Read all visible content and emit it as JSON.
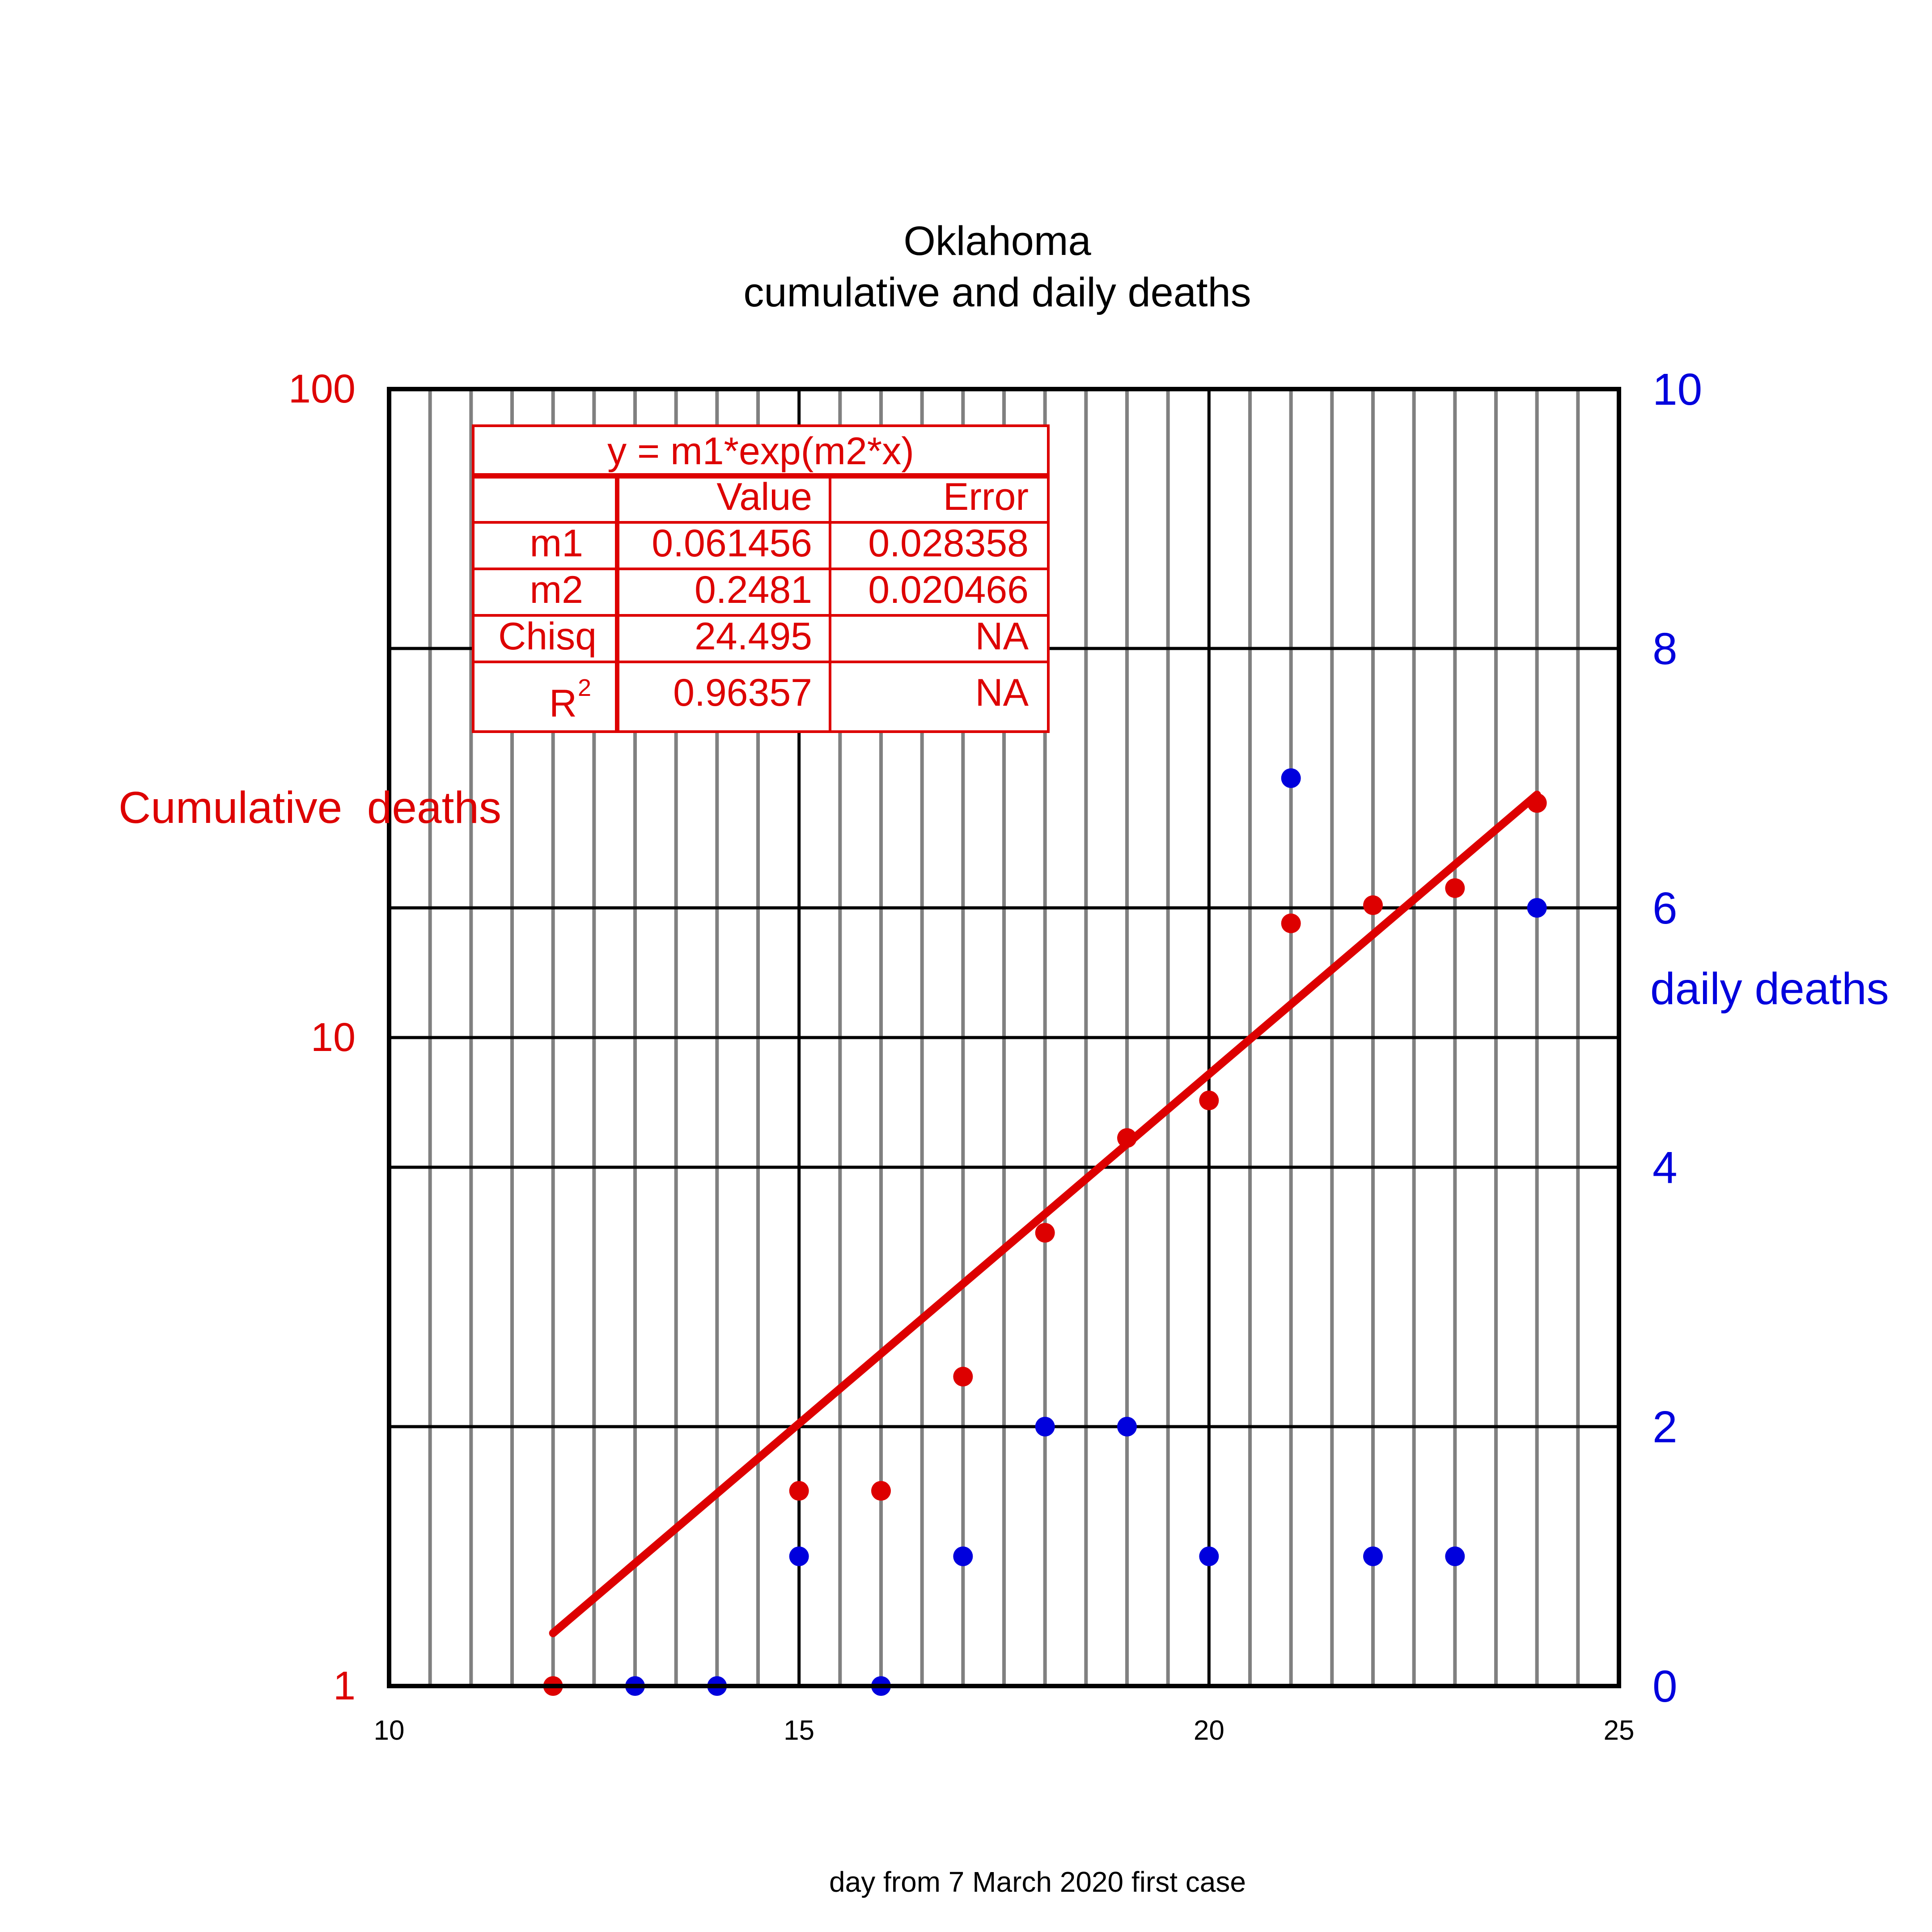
{
  "chart_data": {
    "type": "scatter",
    "title": "Oklahoma",
    "subtitle": "cumulative and daily deaths",
    "xlabel": "day from 7 March 2020 first case",
    "ylabel_left": "Cumulative  deaths",
    "ylabel_right": "daily deaths",
    "xlim": [
      10,
      25
    ],
    "x_ticks": [
      "10",
      "15",
      "20",
      "25"
    ],
    "ylim_left": [
      1,
      100
    ],
    "y_left_scale": "log",
    "y_left_ticks": [
      "1",
      "10",
      "100"
    ],
    "ylim_right": [
      0,
      10
    ],
    "y_right_ticks": [
      "0",
      "2",
      "4",
      "6",
      "8",
      "10"
    ],
    "grid": true,
    "series": [
      {
        "name": "Cumulative  deaths",
        "axis": "left",
        "color": "#dd0000",
        "x": [
          12,
          15,
          16,
          17,
          18,
          19,
          20,
          21,
          22,
          23,
          24
        ],
        "y": [
          1,
          2,
          2,
          3,
          5,
          7,
          8,
          15,
          16,
          17,
          23
        ]
      },
      {
        "name": "daily deaths",
        "axis": "right",
        "color": "#0000dd",
        "x": [
          13,
          14,
          15,
          16,
          17,
          18,
          19,
          20,
          21,
          22,
          23,
          24
        ],
        "y": [
          0,
          0,
          1,
          0,
          1,
          2,
          2,
          1,
          7,
          1,
          1,
          6
        ]
      }
    ],
    "fit": {
      "color": "#dd0000",
      "x_start": 12,
      "x_end": 24,
      "m1": 0.061456,
      "m2": 0.2481
    },
    "fit_table": {
      "equation": "y = m1*exp(m2*x)",
      "header": [
        "",
        "Value",
        "Error"
      ],
      "rows": [
        [
          "m1",
          "0.061456",
          "0.028358"
        ],
        [
          "m2",
          "0.2481",
          "0.020466"
        ],
        [
          "Chisq",
          "24.495",
          "NA"
        ]
      ],
      "r2_label": "R",
      "r2_sup": "2",
      "r2_row": [
        "0.96357",
        "NA"
      ]
    }
  }
}
